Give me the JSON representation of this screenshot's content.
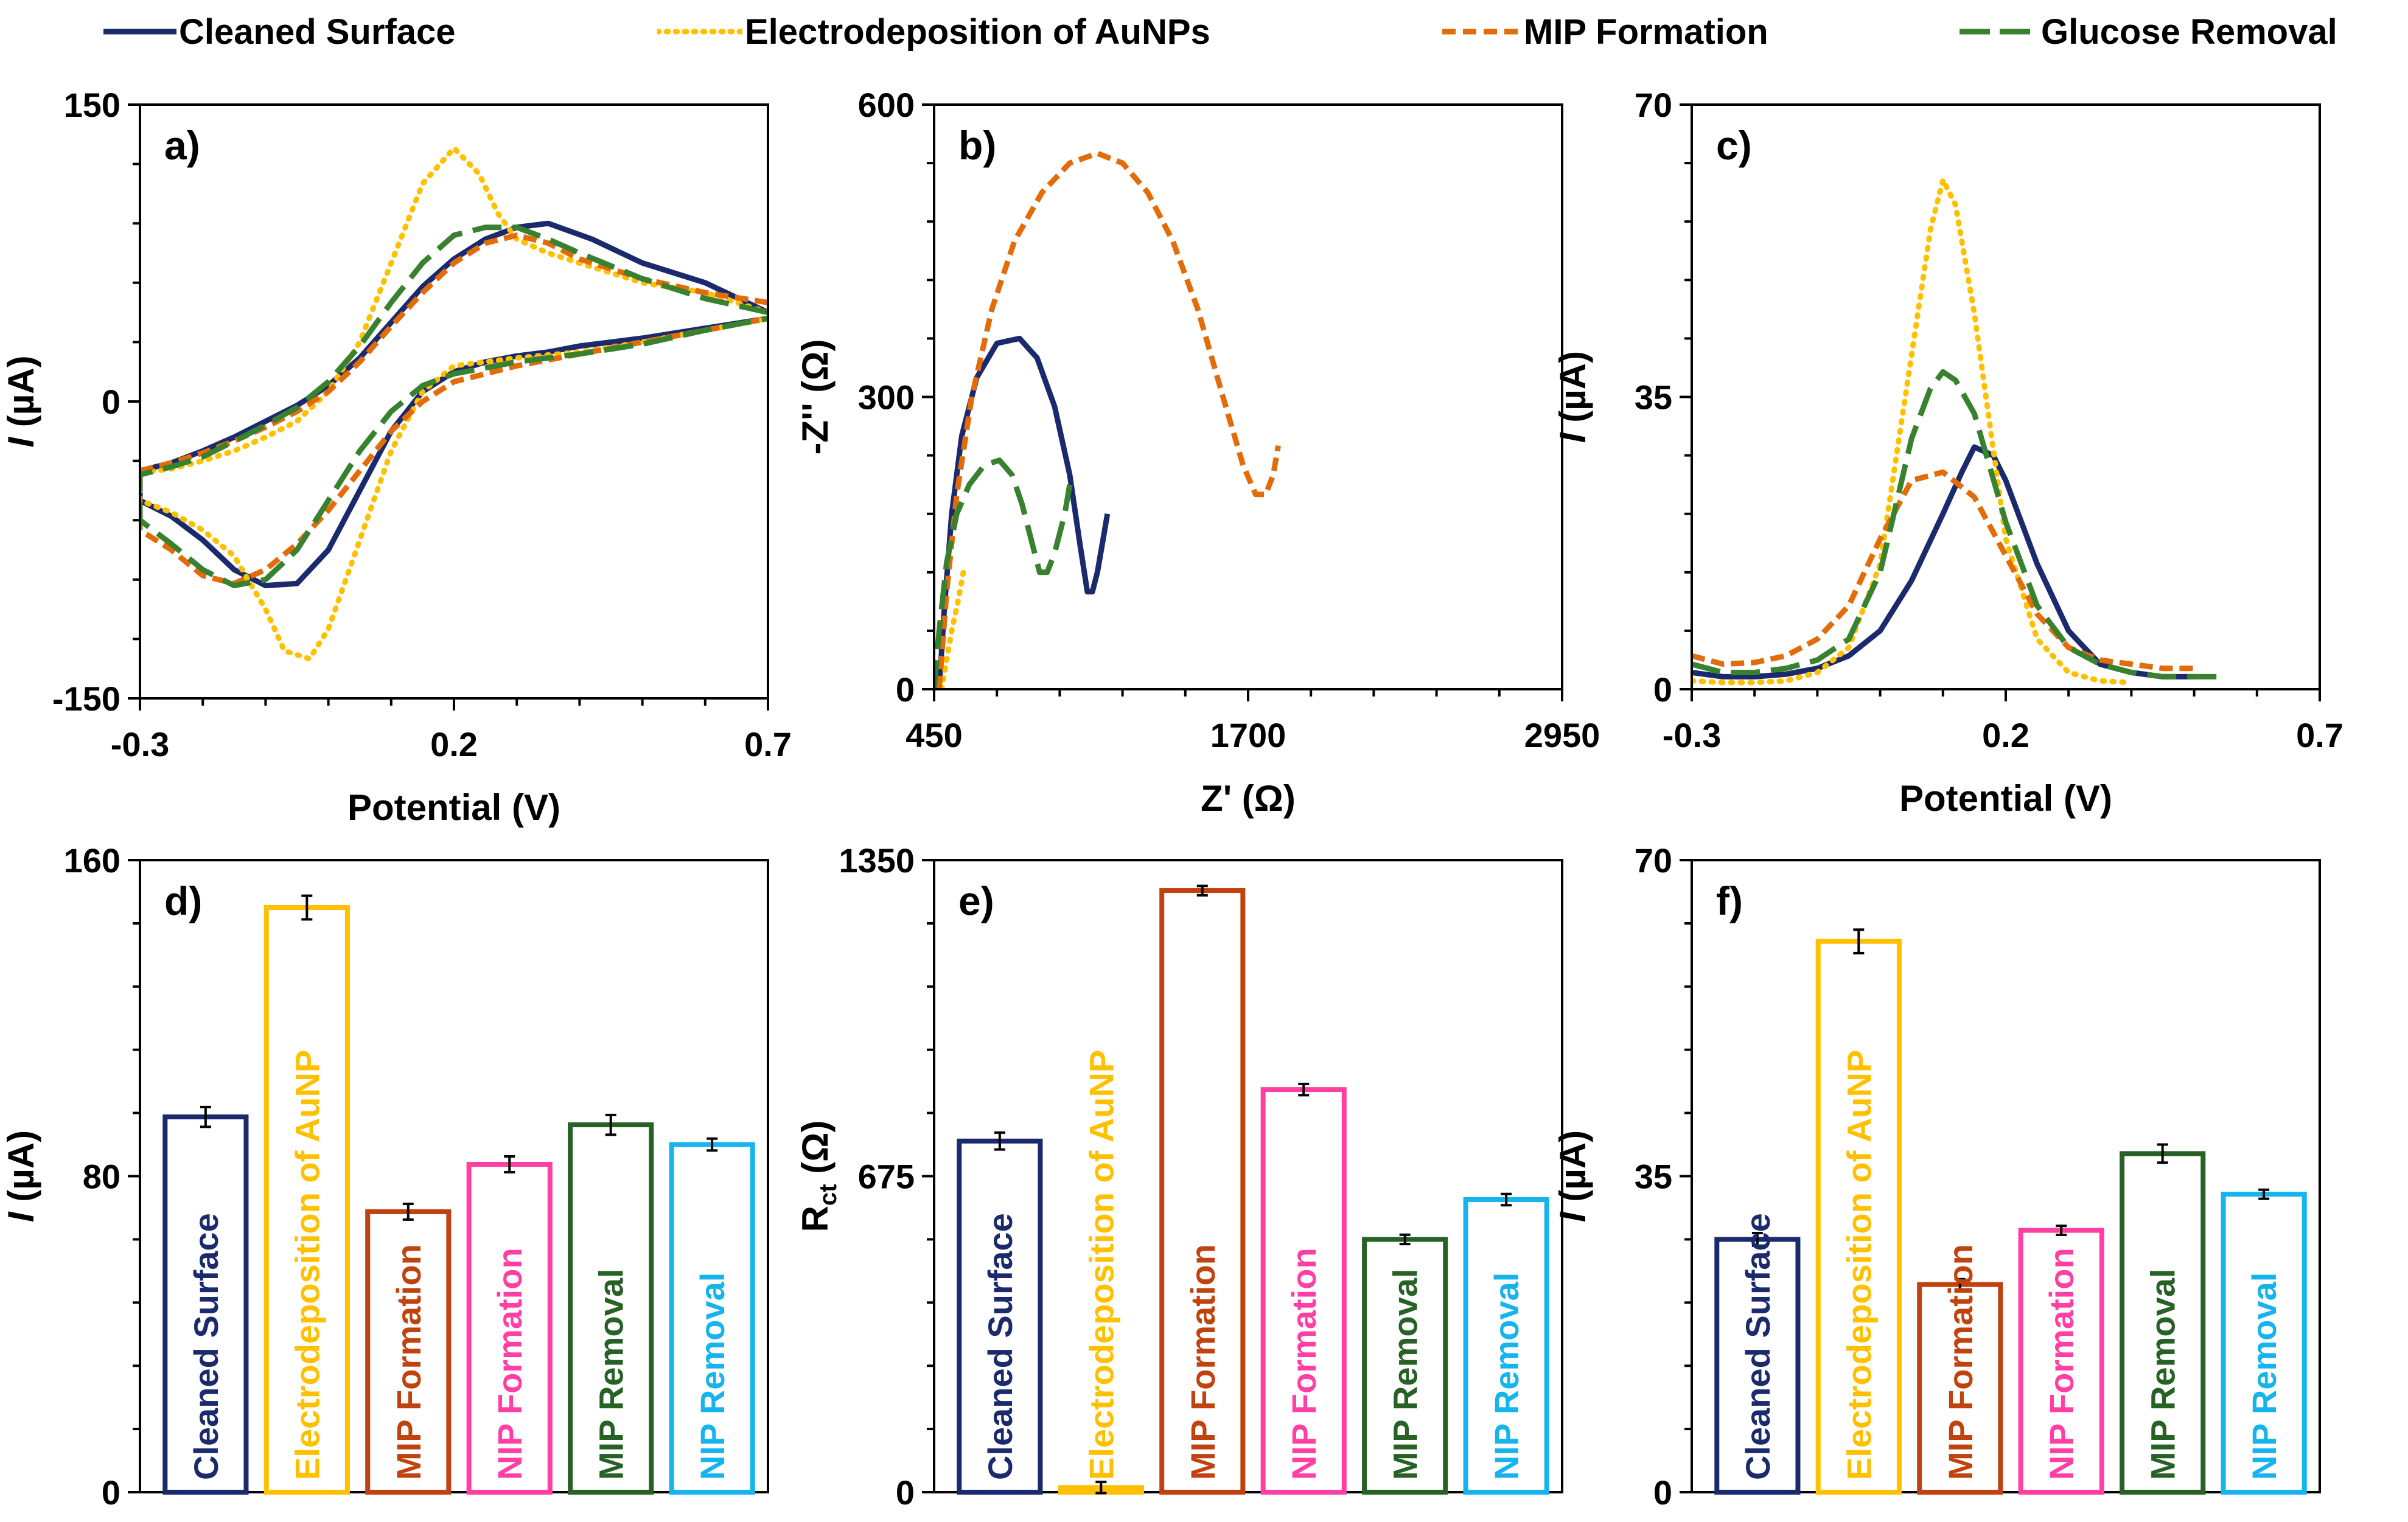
{
  "legend": [
    {
      "label": "Cleaned Surface",
      "color": "#1a2a6c",
      "dash": "solid"
    },
    {
      "label": "Electrodeposition of AuNPs",
      "color": "#ffc000",
      "dash": "dotted"
    },
    {
      "label": "MIP Formation",
      "color": "#e36c0a",
      "dash": "dashed"
    },
    {
      "label": "Glucose Removal",
      "color": "#38812e",
      "dash": "long-dash"
    }
  ],
  "chart_data": [
    {
      "panel": "a)",
      "type": "line",
      "xlabel": "Potential (V)",
      "ylabel_italic": "I",
      "ylabel_rest": " (µA)",
      "xlim": [
        -0.3,
        0.7
      ],
      "ylim": [
        -150,
        150
      ],
      "xticks": [
        "-0.3",
        "0.2",
        "0.7"
      ],
      "yticks": [
        "-150",
        "0",
        "150"
      ],
      "series": [
        {
          "name": "Cleaned Surface",
          "color": "#1a2a6c",
          "dash": "solid",
          "x": [
            0.7,
            0.6,
            0.5,
            0.42,
            0.35,
            0.3,
            0.25,
            0.2,
            0.15,
            0.1,
            0.05,
            0,
            -0.05,
            -0.1,
            -0.15,
            -0.2,
            -0.25,
            -0.3,
            -0.3,
            -0.25,
            -0.2,
            -0.15,
            -0.1,
            -0.05,
            0,
            0.05,
            0.1,
            0.15,
            0.2,
            0.25,
            0.3,
            0.35,
            0.4,
            0.5,
            0.6,
            0.7
          ],
          "y": [
            45,
            60,
            70,
            82,
            90,
            88,
            82,
            72,
            58,
            40,
            22,
            8,
            -2,
            -10,
            -18,
            -25,
            -31,
            -35,
            -50,
            -58,
            -70,
            -85,
            -93,
            -92,
            -75,
            -45,
            -15,
            5,
            15,
            20,
            23,
            25,
            28,
            32,
            37,
            42
          ]
        },
        {
          "name": "Electrodeposition of AuNPs",
          "color": "#ffc000",
          "dash": "dotted",
          "x": [
            0.7,
            0.6,
            0.5,
            0.4,
            0.35,
            0.3,
            0.27,
            0.24,
            0.2,
            0.15,
            0.1,
            0.05,
            0,
            -0.05,
            -0.1,
            -0.15,
            -0.2,
            -0.25,
            -0.3,
            -0.3,
            -0.25,
            -0.2,
            -0.15,
            -0.1,
            -0.07,
            -0.03,
            0,
            0.05,
            0.1,
            0.15,
            0.2,
            0.3,
            0.4,
            0.5,
            0.6,
            0.7
          ],
          "y": [
            45,
            55,
            60,
            70,
            75,
            82,
            95,
            115,
            128,
            110,
            70,
            30,
            5,
            -10,
            -18,
            -25,
            -30,
            -34,
            -36,
            -50,
            -56,
            -65,
            -78,
            -105,
            -126,
            -130,
            -115,
            -70,
            -25,
            5,
            18,
            22,
            25,
            30,
            36,
            42
          ]
        },
        {
          "name": "MIP Formation",
          "color": "#e36c0a",
          "dash": "dashed",
          "x": [
            0.7,
            0.6,
            0.5,
            0.4,
            0.35,
            0.3,
            0.25,
            0.2,
            0.15,
            0.1,
            0.05,
            0,
            -0.05,
            -0.1,
            -0.15,
            -0.2,
            -0.25,
            -0.3,
            -0.3,
            -0.25,
            -0.2,
            -0.15,
            -0.1,
            -0.05,
            0,
            0.05,
            0.1,
            0.15,
            0.2,
            0.3,
            0.4,
            0.5,
            0.6,
            0.7
          ],
          "y": [
            50,
            55,
            62,
            72,
            80,
            84,
            80,
            70,
            55,
            38,
            20,
            5,
            -5,
            -13,
            -20,
            -26,
            -31,
            -35,
            -65,
            -75,
            -88,
            -92,
            -85,
            -72,
            -55,
            -35,
            -15,
            0,
            10,
            18,
            24,
            30,
            36,
            42
          ]
        },
        {
          "name": "Glucose Removal",
          "color": "#38812e",
          "dash": "long-dash",
          "x": [
            0.7,
            0.6,
            0.5,
            0.4,
            0.35,
            0.3,
            0.25,
            0.2,
            0.15,
            0.1,
            0.05,
            0,
            -0.05,
            -0.1,
            -0.15,
            -0.2,
            -0.25,
            -0.3,
            -0.3,
            -0.25,
            -0.2,
            -0.15,
            -0.1,
            -0.05,
            0,
            0.05,
            0.1,
            0.15,
            0.2,
            0.3,
            0.4,
            0.5,
            0.6,
            0.7
          ],
          "y": [
            45,
            52,
            62,
            75,
            82,
            88,
            88,
            84,
            70,
            50,
            28,
            10,
            -3,
            -12,
            -20,
            -28,
            -33,
            -37,
            -60,
            -72,
            -85,
            -93,
            -90,
            -75,
            -50,
            -25,
            -5,
            8,
            14,
            20,
            24,
            29,
            36,
            42
          ]
        }
      ]
    },
    {
      "panel": "b)",
      "type": "line",
      "xlabel": "Z' (Ω)",
      "ylabel": "-Z'' (Ω)",
      "xlim": [
        450,
        2950
      ],
      "ylim": [
        0,
        600
      ],
      "xticks": [
        "450",
        "1700",
        "2950"
      ],
      "yticks": [
        "0",
        "300",
        "600"
      ],
      "series": [
        {
          "name": "Cleaned Surface",
          "color": "#1a2a6c",
          "dash": "solid",
          "x": [
            470,
            490,
            520,
            560,
            620,
            700,
            790,
            860,
            930,
            990,
            1030,
            1060,
            1080,
            1100,
            1120,
            1140
          ],
          "y": [
            0,
            80,
            180,
            260,
            320,
            355,
            360,
            340,
            290,
            220,
            150,
            100,
            100,
            120,
            150,
            180
          ]
        },
        {
          "name": "Electrodeposition of AuNPs",
          "color": "#ffc000",
          "dash": "dotted",
          "x": [
            480,
            500,
            520,
            545,
            570
          ],
          "y": [
            0,
            30,
            60,
            90,
            125
          ]
        },
        {
          "name": "MIP Formation",
          "color": "#e36c0a",
          "dash": "dashed",
          "x": [
            470,
            500,
            540,
            600,
            680,
            770,
            880,
            990,
            1100,
            1200,
            1300,
            1400,
            1500,
            1600,
            1680,
            1730,
            1770,
            1800,
            1820
          ],
          "y": [
            0,
            100,
            200,
            300,
            390,
            460,
            510,
            540,
            550,
            540,
            510,
            460,
            390,
            300,
            230,
            200,
            200,
            220,
            250
          ]
        },
        {
          "name": "Glucose Removal",
          "color": "#38812e",
          "dash": "long-dash",
          "x": [
            450,
            470,
            500,
            540,
            590,
            650,
            710,
            760,
            800,
            840,
            870,
            900,
            930,
            950,
            970,
            990
          ],
          "y": [
            0,
            60,
            130,
            180,
            210,
            230,
            235,
            220,
            190,
            150,
            120,
            120,
            140,
            160,
            180,
            210
          ]
        }
      ]
    },
    {
      "panel": "c)",
      "type": "line",
      "xlabel": "Potential (V)",
      "ylabel_italic": "I",
      "ylabel_rest": " (µA)",
      "xlim": [
        -0.3,
        0.7
      ],
      "ylim": [
        0,
        70
      ],
      "xticks": [
        "-0.3",
        "0.2",
        "0.7"
      ],
      "yticks": [
        "0",
        "35",
        "70"
      ],
      "series": [
        {
          "name": "Cleaned Surface",
          "color": "#1a2a6c",
          "dash": "solid",
          "x": [
            -0.3,
            -0.25,
            -0.2,
            -0.15,
            -0.1,
            -0.05,
            0,
            0.05,
            0.1,
            0.13,
            0.15,
            0.18,
            0.2,
            0.25,
            0.3,
            0.35,
            0.4,
            0.45,
            0.5
          ],
          "y": [
            2,
            1.5,
            1.5,
            1.8,
            2.5,
            4,
            7,
            13,
            21,
            26,
            29,
            28,
            25,
            15,
            7,
            3,
            2,
            1.5,
            1.5
          ]
        },
        {
          "name": "Electrodeposition of AuNPs",
          "color": "#ffc000",
          "dash": "dotted",
          "x": [
            -0.3,
            -0.25,
            -0.2,
            -0.15,
            -0.1,
            -0.05,
            0,
            0.05,
            0.08,
            0.1,
            0.12,
            0.15,
            0.2,
            0.25,
            0.3,
            0.35,
            0.4
          ],
          "y": [
            1,
            0.8,
            0.8,
            1,
            2,
            5,
            15,
            40,
            55,
            61,
            58,
            45,
            18,
            6,
            2,
            1,
            0.8
          ]
        },
        {
          "name": "MIP Formation",
          "color": "#e36c0a",
          "dash": "dashed",
          "x": [
            -0.3,
            -0.25,
            -0.2,
            -0.15,
            -0.1,
            -0.05,
            0,
            0.05,
            0.1,
            0.15,
            0.2,
            0.25,
            0.3,
            0.35,
            0.4,
            0.45,
            0.5
          ],
          "y": [
            4,
            3,
            3.2,
            4,
            6,
            10,
            18,
            25,
            26,
            23,
            16,
            9,
            5,
            3.5,
            3,
            2.5,
            2.5
          ]
        },
        {
          "name": "Glucose Removal",
          "color": "#38812e",
          "dash": "long-dash",
          "x": [
            -0.3,
            -0.25,
            -0.2,
            -0.15,
            -0.1,
            -0.05,
            0,
            0.05,
            0.08,
            0.1,
            0.12,
            0.15,
            0.2,
            0.25,
            0.3,
            0.35,
            0.4,
            0.45,
            0.5,
            0.55
          ],
          "y": [
            3,
            2,
            2,
            2.5,
            3.5,
            6,
            14,
            30,
            36,
            38,
            37,
            33,
            20,
            10,
            5,
            3,
            2,
            1.5,
            1.5,
            1.5
          ]
        }
      ]
    },
    {
      "panel": "d)",
      "type": "bar",
      "ylabel_italic": "I",
      "ylabel_rest": " (µA)",
      "ylim": [
        0,
        160
      ],
      "yticks": [
        "0",
        "80",
        "160"
      ],
      "categories": [
        "Cleaned Surface",
        "Electrodeposition of AuNP",
        "MIP Formation",
        "NIP Formation",
        "MIP Removal",
        "NIP Removal"
      ],
      "colors": [
        "#1a2a6c",
        "#ffc000",
        "#c0430f",
        "#ff3fa4",
        "#276126",
        "#16b4ef"
      ],
      "values": [
        95,
        148,
        71,
        83,
        93,
        88
      ],
      "errors": [
        2.5,
        3,
        2,
        2,
        2.5,
        1.5
      ]
    },
    {
      "panel": "e)",
      "type": "bar",
      "ylabel_main": "R",
      "ylabel_sub": "ct",
      "ylabel_rest": " (Ω)",
      "ylim": [
        0,
        1350
      ],
      "yticks": [
        "0",
        "675",
        "1350"
      ],
      "categories": [
        "Cleaned Surface",
        "Electrodeposition of AuNP",
        "MIP Formation",
        "NIP Formation",
        "MIP Removal",
        "NIP Removal"
      ],
      "colors": [
        "#1a2a6c",
        "#ffc000",
        "#c0430f",
        "#ff3fa4",
        "#276126",
        "#16b4ef"
      ],
      "values": [
        750,
        10,
        1285,
        860,
        540,
        625
      ],
      "errors": [
        18,
        12,
        10,
        12,
        10,
        12
      ]
    },
    {
      "panel": "f)",
      "type": "bar",
      "ylabel_italic": "I",
      "ylabel_rest": " (µA)",
      "ylim": [
        0,
        70
      ],
      "yticks": [
        "0",
        "35",
        "70"
      ],
      "categories": [
        "Cleaned Surface",
        "Electrodeposition of AuNP",
        "MIP Formation",
        "NIP Formation",
        "MIP Removal",
        "NIP Removal"
      ],
      "colors": [
        "#1a2a6c",
        "#ffc000",
        "#c0430f",
        "#ff3fa4",
        "#276126",
        "#16b4ef"
      ],
      "values": [
        28,
        61,
        23,
        29,
        37.5,
        33
      ],
      "errors": [
        0.7,
        1.3,
        0.6,
        0.5,
        1,
        0.5
      ]
    }
  ]
}
